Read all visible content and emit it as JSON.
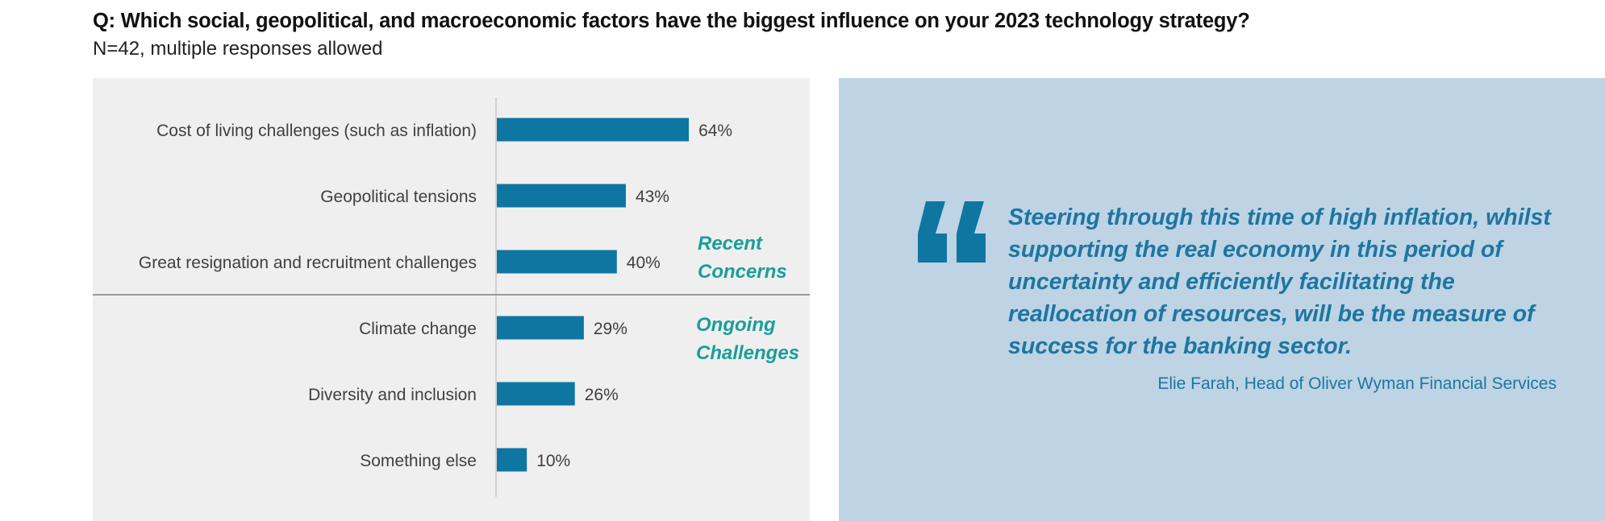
{
  "header": {
    "question": "Q: Which social, geopolitical, and macroeconomic factors have the biggest influence on your 2023 technology strategy?",
    "subtitle": "N=42, multiple responses allowed"
  },
  "chart_data": {
    "type": "bar",
    "orientation": "horizontal",
    "categories": [
      "Cost of living challenges (such as inflation)",
      "Geopolitical tensions",
      "Great resignation and recruitment challenges",
      "Climate change",
      "Diversity and inclusion",
      "Something else"
    ],
    "values": [
      64,
      43,
      40,
      29,
      26,
      10
    ],
    "value_labels": [
      "64%",
      "43%",
      "40%",
      "29%",
      "26%",
      "10%"
    ],
    "unit": "%",
    "xlim": [
      0,
      100
    ],
    "grid": false,
    "bar_color": "#0e76a1",
    "groups": [
      {
        "label_line1": "Recent",
        "label_line2": "Concerns",
        "count": 3
      },
      {
        "label_line1": "Ongoing",
        "label_line2": "Challenges",
        "count": 3
      }
    ],
    "group_label_color": "#1a9e9a"
  },
  "quote": {
    "text": "Steering through this time of high inflation, whilst supporting the real economy in this period of uncertainty and efficiently facilitating the reallocation of resources, will be the measure of success for the banking sector.",
    "author": "Elie Farah, Head of Oliver Wyman Financial Services",
    "color": "#1c76a2"
  },
  "colors": {
    "chart_background": "#efefef",
    "quote_background": "#bed3e3"
  }
}
